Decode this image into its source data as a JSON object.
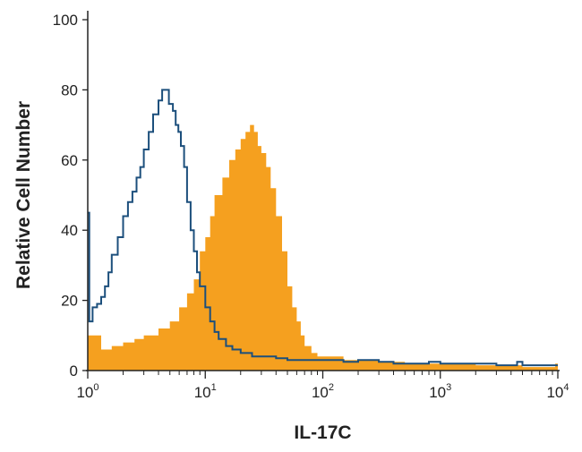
{
  "chart_data": {
    "type": "histogram",
    "xlabel": "IL-17C",
    "ylabel": "Relative Cell Number",
    "x_scale": "log",
    "xlim": [
      1,
      10000
    ],
    "ylim": [
      0,
      100
    ],
    "x_ticks": [
      {
        "value": 1,
        "base": "10",
        "exp": "0"
      },
      {
        "value": 10,
        "base": "10",
        "exp": "1"
      },
      {
        "value": 100,
        "base": "10",
        "exp": "2"
      },
      {
        "value": 1000,
        "base": "10",
        "exp": "3"
      },
      {
        "value": 10000,
        "base": "10",
        "exp": "4"
      }
    ],
    "y_ticks": [
      0,
      20,
      40,
      60,
      80,
      100
    ],
    "grid": false,
    "legend": "none",
    "series": [
      {
        "style": "filled",
        "color": "#f5a01f",
        "points": [
          [
            1,
            10
          ],
          [
            1.3,
            6
          ],
          [
            1.6,
            7
          ],
          [
            2,
            8
          ],
          [
            2.5,
            9
          ],
          [
            3,
            10
          ],
          [
            3.5,
            10
          ],
          [
            4,
            12
          ],
          [
            5,
            14
          ],
          [
            6,
            18
          ],
          [
            7,
            22
          ],
          [
            8,
            26
          ],
          [
            9,
            34
          ],
          [
            10,
            38
          ],
          [
            11,
            44
          ],
          [
            12,
            50
          ],
          [
            14,
            55
          ],
          [
            16,
            60
          ],
          [
            18,
            63
          ],
          [
            20,
            66
          ],
          [
            22,
            68
          ],
          [
            24,
            70
          ],
          [
            26,
            68
          ],
          [
            28,
            64
          ],
          [
            30,
            62
          ],
          [
            33,
            58
          ],
          [
            36,
            52
          ],
          [
            40,
            44
          ],
          [
            45,
            34
          ],
          [
            50,
            24
          ],
          [
            55,
            18
          ],
          [
            60,
            14
          ],
          [
            65,
            10
          ],
          [
            70,
            7
          ],
          [
            80,
            5
          ],
          [
            90,
            4
          ],
          [
            100,
            4
          ],
          [
            150,
            3
          ],
          [
            200,
            3
          ],
          [
            300,
            2.5
          ],
          [
            500,
            2
          ],
          [
            1000,
            2
          ],
          [
            2000,
            1.5
          ],
          [
            5000,
            1
          ],
          [
            8000,
            1
          ],
          [
            9500,
            2
          ],
          [
            10000,
            0
          ]
        ]
      },
      {
        "style": "outline",
        "color": "#1c4f7c",
        "points": [
          [
            1,
            45
          ],
          [
            1.03,
            14
          ],
          [
            1.1,
            18
          ],
          [
            1.2,
            19
          ],
          [
            1.3,
            21
          ],
          [
            1.4,
            24
          ],
          [
            1.5,
            28
          ],
          [
            1.6,
            33
          ],
          [
            1.8,
            38
          ],
          [
            2,
            44
          ],
          [
            2.2,
            48
          ],
          [
            2.4,
            51
          ],
          [
            2.6,
            55
          ],
          [
            2.8,
            58
          ],
          [
            3,
            63
          ],
          [
            3.3,
            68
          ],
          [
            3.6,
            73
          ],
          [
            4,
            77
          ],
          [
            4.3,
            80
          ],
          [
            4.6,
            80
          ],
          [
            4.9,
            76
          ],
          [
            5.3,
            74
          ],
          [
            5.6,
            70
          ],
          [
            5.9,
            68
          ],
          [
            6.2,
            64
          ],
          [
            6.6,
            58
          ],
          [
            7,
            48
          ],
          [
            7.5,
            40
          ],
          [
            8,
            34
          ],
          [
            8.5,
            28
          ],
          [
            9,
            24
          ],
          [
            10,
            18
          ],
          [
            11,
            14
          ],
          [
            12,
            11
          ],
          [
            13,
            9
          ],
          [
            15,
            7
          ],
          [
            17,
            6
          ],
          [
            20,
            5
          ],
          [
            25,
            4
          ],
          [
            30,
            4
          ],
          [
            40,
            3.5
          ],
          [
            50,
            3
          ],
          [
            70,
            3
          ],
          [
            100,
            3
          ],
          [
            150,
            2.5
          ],
          [
            200,
            3
          ],
          [
            300,
            2.5
          ],
          [
            400,
            2
          ],
          [
            600,
            2
          ],
          [
            800,
            2.5
          ],
          [
            1000,
            2
          ],
          [
            2000,
            2
          ],
          [
            3000,
            1.5
          ],
          [
            4500,
            2.5
          ],
          [
            5000,
            1.5
          ],
          [
            7000,
            1.5
          ],
          [
            10000,
            1.5
          ]
        ]
      }
    ]
  }
}
